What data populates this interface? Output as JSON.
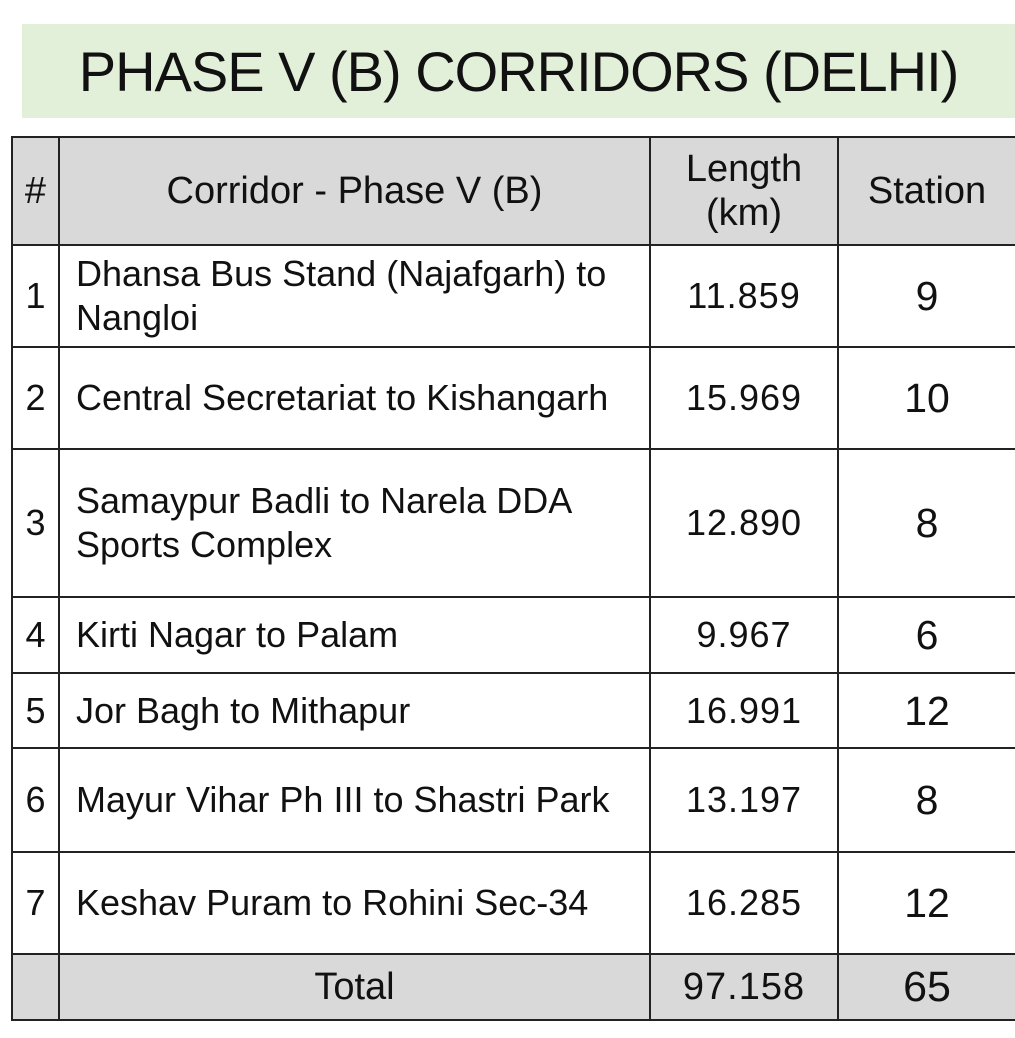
{
  "title": "PHASE V (B) CORRIDORS (DELHI)",
  "table": {
    "headers": {
      "num": "#",
      "corridor": "Corridor  - Phase V (B)",
      "length_line1": "Length",
      "length_line2": "(km)",
      "station": "Station"
    },
    "rows": [
      {
        "num": "1",
        "corridor": "Dhansa Bus Stand (Najafgarh) to Nangloi",
        "length": "11.859",
        "stations": "9"
      },
      {
        "num": "2",
        "corridor": "Central Secretariat to Kishangarh",
        "length": "15.969",
        "stations": "10"
      },
      {
        "num": "3",
        "corridor": "Samaypur Badli to Narela DDA Sports Complex",
        "length": "12.890",
        "stations": "8"
      },
      {
        "num": "4",
        "corridor": "Kirti Nagar to Palam",
        "length": "9.967",
        "stations": "6"
      },
      {
        "num": "5",
        "corridor": "Jor Bagh to Mithapur",
        "length": "16.991",
        "stations": "12"
      },
      {
        "num": "6",
        "corridor": "Mayur Vihar Ph III to Shastri Park",
        "length": "13.197",
        "stations": "8"
      },
      {
        "num": "7",
        "corridor": "Keshav Puram to Rohini Sec-34",
        "length": "16.285",
        "stations": "12"
      }
    ],
    "total": {
      "label": "Total",
      "length": "97.158",
      "stations": "65"
    }
  }
}
